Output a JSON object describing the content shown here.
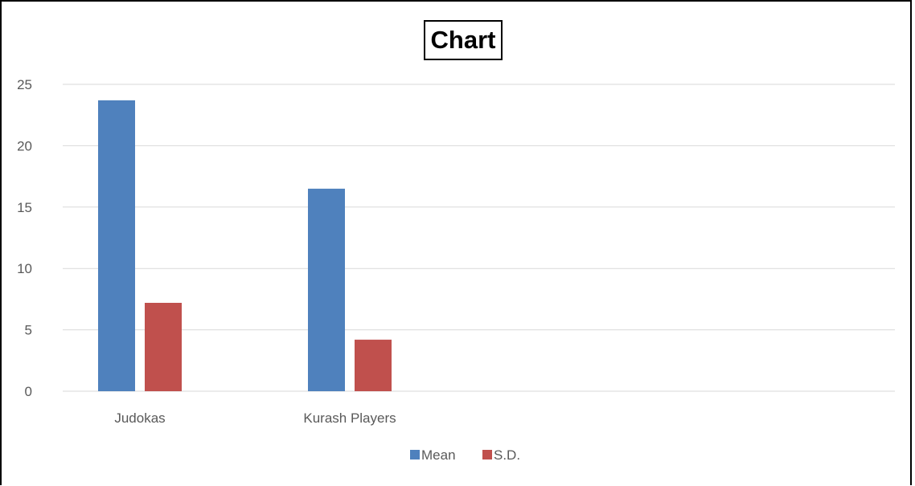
{
  "chart_data": {
    "type": "bar",
    "title": "Chart",
    "categories": [
      "Judokas",
      "Kurash Players"
    ],
    "series": [
      {
        "name": "Mean",
        "values": [
          23.7,
          16.5
        ],
        "color": "#4F81BD"
      },
      {
        "name": "S.D.",
        "values": [
          7.2,
          4.2
        ],
        "color": "#C0504D"
      }
    ],
    "ylim": [
      0,
      25
    ],
    "yticks": [
      "0",
      "5",
      "10",
      "15",
      "20",
      "25"
    ],
    "grid": true,
    "legend_position": "bottom",
    "xlabel": "",
    "ylabel": ""
  }
}
